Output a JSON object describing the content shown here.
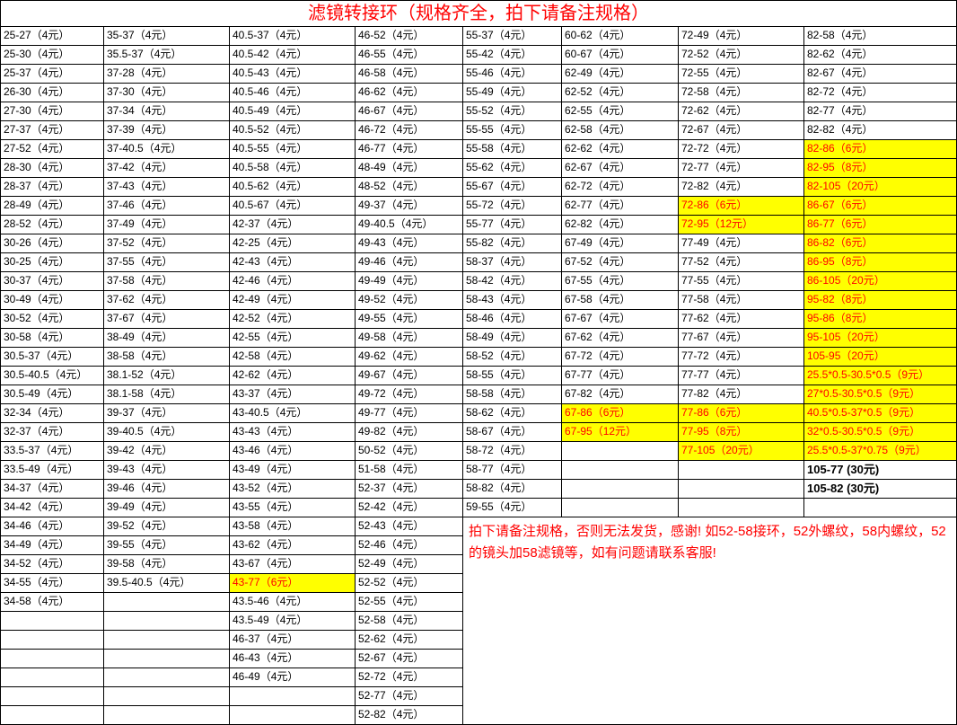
{
  "title": "滤镜转接环（规格齐全，拍下请备注规格）",
  "note": "拍下请备注规格，否则无法发货，感谢! 如52-58接环，52外螺纹，58内螺纹，52的镜头加58滤镜等，如有问题请联系客服!",
  "col_widths": [
    "115",
    "140",
    "140",
    "120",
    "110",
    "130",
    "140",
    "170"
  ],
  "rows": [
    [
      {
        "t": "25-27（4元）"
      },
      {
        "t": "35-37（4元）"
      },
      {
        "t": "40.5-37（4元）"
      },
      {
        "t": "46-52（4元）"
      },
      {
        "t": "55-37（4元）"
      },
      {
        "t": "60-62（4元）"
      },
      {
        "t": "72-49（4元）"
      },
      {
        "t": "82-58（4元）"
      }
    ],
    [
      {
        "t": "25-30（4元）"
      },
      {
        "t": "35.5-37（4元）"
      },
      {
        "t": "40.5-42（4元）"
      },
      {
        "t": "46-55（4元）"
      },
      {
        "t": "55-42（4元）"
      },
      {
        "t": "60-67（4元）"
      },
      {
        "t": "72-52（4元）"
      },
      {
        "t": "82-62（4元）"
      }
    ],
    [
      {
        "t": "25-37（4元）"
      },
      {
        "t": "37-28（4元）"
      },
      {
        "t": "40.5-43（4元）"
      },
      {
        "t": "46-58（4元）"
      },
      {
        "t": "55-46（4元）"
      },
      {
        "t": "62-49（4元）"
      },
      {
        "t": "72-55（4元）"
      },
      {
        "t": "82-67（4元）"
      }
    ],
    [
      {
        "t": "26-30（4元）"
      },
      {
        "t": "37-30（4元）"
      },
      {
        "t": "40.5-46（4元）"
      },
      {
        "t": "46-62（4元）"
      },
      {
        "t": "55-49（4元）"
      },
      {
        "t": "62-52（4元）"
      },
      {
        "t": "72-58（4元）"
      },
      {
        "t": "82-72（4元）"
      }
    ],
    [
      {
        "t": "27-30（4元）"
      },
      {
        "t": "37-34（4元）"
      },
      {
        "t": "40.5-49（4元）"
      },
      {
        "t": "46-67（4元）"
      },
      {
        "t": "55-52（4元）"
      },
      {
        "t": "62-55（4元）"
      },
      {
        "t": "72-62（4元）"
      },
      {
        "t": "82-77（4元）"
      }
    ],
    [
      {
        "t": "27-37（4元）"
      },
      {
        "t": "37-39（4元）"
      },
      {
        "t": "40.5-52（4元）"
      },
      {
        "t": "46-72（4元）"
      },
      {
        "t": "55-55（4元）"
      },
      {
        "t": "62-58（4元）"
      },
      {
        "t": "72-67（4元）"
      },
      {
        "t": "82-82（4元）"
      }
    ],
    [
      {
        "t": "27-52（4元）"
      },
      {
        "t": "37-40.5（4元）"
      },
      {
        "t": "40.5-55（4元）"
      },
      {
        "t": "46-77（4元）"
      },
      {
        "t": "55-58（4元）"
      },
      {
        "t": "62-62（4元）"
      },
      {
        "t": "72-72（4元）"
      },
      {
        "t": "82-86（6元）",
        "hl": 1
      }
    ],
    [
      {
        "t": "28-30（4元）"
      },
      {
        "t": "37-42（4元）"
      },
      {
        "t": "40.5-58（4元）"
      },
      {
        "t": "48-49（4元）"
      },
      {
        "t": "55-62（4元）"
      },
      {
        "t": "62-67（4元）"
      },
      {
        "t": "72-77（4元）"
      },
      {
        "t": "82-95（8元）",
        "hl": 1
      }
    ],
    [
      {
        "t": "28-37（4元）"
      },
      {
        "t": "37-43（4元）"
      },
      {
        "t": "40.5-62（4元）"
      },
      {
        "t": "48-52（4元）"
      },
      {
        "t": "55-67（4元）"
      },
      {
        "t": "62-72（4元）"
      },
      {
        "t": "72-82（4元）"
      },
      {
        "t": "82-105（20元）",
        "hl": 1
      }
    ],
    [
      {
        "t": "28-49（4元）"
      },
      {
        "t": "37-46（4元）"
      },
      {
        "t": "40.5-67（4元）"
      },
      {
        "t": "49-37（4元）"
      },
      {
        "t": "55-72（4元）"
      },
      {
        "t": "62-77（4元）"
      },
      {
        "t": "72-86（6元）",
        "hl": 1
      },
      {
        "t": "86-67（6元）",
        "hl": 1
      }
    ],
    [
      {
        "t": "28-52（4元）"
      },
      {
        "t": "37-49（4元）"
      },
      {
        "t": "42-37（4元）"
      },
      {
        "t": "49-40.5（4元）"
      },
      {
        "t": "55-77（4元）"
      },
      {
        "t": "62-82（4元）"
      },
      {
        "t": "72-95（12元）",
        "hl": 1
      },
      {
        "t": "86-77（6元）",
        "hl": 1
      }
    ],
    [
      {
        "t": "30-26（4元）"
      },
      {
        "t": "37-52（4元）"
      },
      {
        "t": "42-25（4元）"
      },
      {
        "t": "49-43（4元）"
      },
      {
        "t": "55-82（4元）"
      },
      {
        "t": "67-49（4元）"
      },
      {
        "t": "77-49（4元）"
      },
      {
        "t": "86-82（6元）",
        "hl": 1
      }
    ],
    [
      {
        "t": "30-25（4元）"
      },
      {
        "t": "37-55（4元）"
      },
      {
        "t": "42-43（4元）"
      },
      {
        "t": "49-46（4元）"
      },
      {
        "t": "58-37（4元）"
      },
      {
        "t": "67-52（4元）"
      },
      {
        "t": "77-52（4元）"
      },
      {
        "t": "86-95（8元）",
        "hl": 1
      }
    ],
    [
      {
        "t": "30-37（4元）"
      },
      {
        "t": "37-58（4元）"
      },
      {
        "t": "42-46（4元）"
      },
      {
        "t": "49-49（4元）"
      },
      {
        "t": "58-42（4元）"
      },
      {
        "t": "67-55（4元）"
      },
      {
        "t": "77-55（4元）"
      },
      {
        "t": "86-105（20元）",
        "hl": 1
      }
    ],
    [
      {
        "t": "30-49（4元）"
      },
      {
        "t": "37-62（4元）"
      },
      {
        "t": "42-49（4元）"
      },
      {
        "t": "49-52（4元）"
      },
      {
        "t": "58-43（4元）"
      },
      {
        "t": "67-58（4元）"
      },
      {
        "t": "77-58（4元）"
      },
      {
        "t": "95-82（8元）",
        "hl": 1
      }
    ],
    [
      {
        "t": "30-52（4元）"
      },
      {
        "t": "37-67（4元）"
      },
      {
        "t": "42-52（4元）"
      },
      {
        "t": "49-55（4元）"
      },
      {
        "t": "58-46（4元）"
      },
      {
        "t": "67-67（4元）"
      },
      {
        "t": "77-62（4元）"
      },
      {
        "t": "95-86（8元）",
        "hl": 1
      }
    ],
    [
      {
        "t": "30-58（4元）"
      },
      {
        "t": "38-49（4元）"
      },
      {
        "t": "42-55（4元）"
      },
      {
        "t": "49-58（4元）"
      },
      {
        "t": "58-49（4元）"
      },
      {
        "t": "67-62（4元）"
      },
      {
        "t": "77-67（4元）"
      },
      {
        "t": "95-105（20元）",
        "hl": 1
      }
    ],
    [
      {
        "t": "30.5-37（4元）"
      },
      {
        "t": "38-58（4元）"
      },
      {
        "t": "42-58（4元）"
      },
      {
        "t": "49-62（4元）"
      },
      {
        "t": "58-52（4元）"
      },
      {
        "t": "67-72（4元）"
      },
      {
        "t": "77-72（4元）"
      },
      {
        "t": "105-95（20元）",
        "hl": 1
      }
    ],
    [
      {
        "t": "30.5-40.5（4元）"
      },
      {
        "t": "38.1-52（4元）"
      },
      {
        "t": "42-62（4元）"
      },
      {
        "t": "49-67（4元）"
      },
      {
        "t": "58-55（4元）"
      },
      {
        "t": "67-77（4元）"
      },
      {
        "t": "77-77（4元）"
      },
      {
        "t": "25.5*0.5-30.5*0.5（9元）",
        "hl": 1
      }
    ],
    [
      {
        "t": "30.5-49（4元）"
      },
      {
        "t": "38.1-58（4元）"
      },
      {
        "t": "43-37（4元）"
      },
      {
        "t": "49-72（4元）"
      },
      {
        "t": "58-58（4元）"
      },
      {
        "t": "67-82（4元）"
      },
      {
        "t": "77-82（4元）"
      },
      {
        "t": "27*0.5-30.5*0.5（9元）",
        "hl": 1
      }
    ],
    [
      {
        "t": "32-34（4元）"
      },
      {
        "t": "39-37（4元）"
      },
      {
        "t": "43-40.5（4元）"
      },
      {
        "t": "49-77（4元）"
      },
      {
        "t": "58-62（4元）"
      },
      {
        "t": "67-86（6元）",
        "hl": 1
      },
      {
        "t": "77-86（6元）",
        "hl": 1
      },
      {
        "t": "40.5*0.5-37*0.5（9元）",
        "hl": 1
      }
    ],
    [
      {
        "t": "32-37（4元）"
      },
      {
        "t": "39-40.5（4元）"
      },
      {
        "t": "43-43（4元）"
      },
      {
        "t": "49-82（4元）"
      },
      {
        "t": "58-67（4元）"
      },
      {
        "t": "67-95（12元）",
        "hl": 1
      },
      {
        "t": "77-95（8元）",
        "hl": 1
      },
      {
        "t": "32*0.5-30.5*0.5（9元）",
        "hl": 1
      }
    ],
    [
      {
        "t": "33.5-37（4元）"
      },
      {
        "t": "39-42（4元）"
      },
      {
        "t": "43-46（4元）"
      },
      {
        "t": "50-52（4元）"
      },
      {
        "t": "58-72（4元）"
      },
      {
        "t": ""
      },
      {
        "t": "77-105（20元）",
        "hl": 1
      },
      {
        "t": "25.5*0.5-37*0.75（9元）",
        "hl": 1
      }
    ],
    [
      {
        "t": "33.5-49（4元）"
      },
      {
        "t": "39-43（4元）"
      },
      {
        "t": "43-49（4元）"
      },
      {
        "t": "51-58（4元）"
      },
      {
        "t": "58-77（4元）"
      },
      {
        "t": ""
      },
      {
        "t": ""
      },
      {
        "t": "105-77 (30元)",
        "bold": 1
      }
    ],
    [
      {
        "t": "34-37（4元）"
      },
      {
        "t": "39-46（4元）"
      },
      {
        "t": "43-52（4元）"
      },
      {
        "t": "52-37（4元）"
      },
      {
        "t": "58-82（4元）"
      },
      {
        "t": ""
      },
      {
        "t": ""
      },
      {
        "t": "105-82 (30元)",
        "bold": 1
      }
    ],
    [
      {
        "t": "34-42（4元）"
      },
      {
        "t": "39-49（4元）"
      },
      {
        "t": "43-55（4元）"
      },
      {
        "t": "52-42（4元）"
      },
      {
        "t": "59-55（4元）"
      },
      {
        "t": ""
      },
      {
        "t": ""
      },
      {
        "t": ""
      }
    ],
    [
      {
        "t": "34-46（4元）"
      },
      {
        "t": "39-52（4元）"
      },
      {
        "t": "43-58（4元）"
      },
      {
        "t": "52-43（4元）"
      },
      {
        "note": 1
      }
    ],
    [
      {
        "t": "34-49（4元）"
      },
      {
        "t": "39-55（4元）"
      },
      {
        "t": "43-62（4元）"
      },
      {
        "t": "52-46（4元）"
      }
    ],
    [
      {
        "t": "34-52（4元）"
      },
      {
        "t": "39-58（4元）"
      },
      {
        "t": "43-67（4元）"
      },
      {
        "t": "52-49（4元）"
      }
    ],
    [
      {
        "t": "34-55（4元）"
      },
      {
        "t": "39.5-40.5（4元）"
      },
      {
        "t": "43-77（6元）",
        "hl": 1
      },
      {
        "t": "52-52（4元）"
      }
    ],
    [
      {
        "t": "34-58（4元）"
      },
      {
        "t": ""
      },
      {
        "t": "43.5-46（4元）"
      },
      {
        "t": "52-55（4元）"
      }
    ],
    [
      {
        "t": ""
      },
      {
        "t": ""
      },
      {
        "t": "43.5-49（4元）"
      },
      {
        "t": "52-58（4元）"
      }
    ],
    [
      {
        "t": ""
      },
      {
        "t": ""
      },
      {
        "t": "46-37（4元）"
      },
      {
        "t": "52-62（4元）"
      }
    ],
    [
      {
        "t": ""
      },
      {
        "t": ""
      },
      {
        "t": "46-43（4元）"
      },
      {
        "t": "52-67（4元）"
      }
    ],
    [
      {
        "t": ""
      },
      {
        "t": ""
      },
      {
        "t": "46-49（4元）"
      },
      {
        "t": "52-72（4元）"
      }
    ],
    [
      {
        "t": ""
      },
      {
        "t": ""
      },
      {
        "t": ""
      },
      {
        "t": "52-77（4元）"
      }
    ],
    [
      {
        "t": ""
      },
      {
        "t": ""
      },
      {
        "t": ""
      },
      {
        "t": "52-82（4元）"
      }
    ]
  ]
}
